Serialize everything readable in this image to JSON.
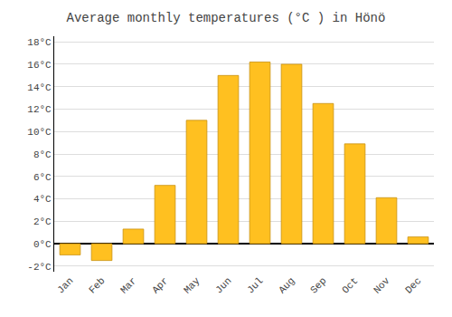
{
  "chart_data": {
    "type": "bar",
    "title": "Average monthly temperatures (°C ) in Hönö",
    "categories": [
      "Jan",
      "Feb",
      "Mar",
      "Apr",
      "May",
      "Jun",
      "Jul",
      "Aug",
      "Sep",
      "Oct",
      "Nov",
      "Dec"
    ],
    "values": [
      -1.0,
      -1.5,
      1.3,
      5.2,
      11.0,
      15.0,
      16.2,
      16.0,
      12.5,
      8.9,
      4.1,
      0.6
    ],
    "color": "#FFC020",
    "ylim": [
      -2.5,
      18.5
    ],
    "yticks": [
      {
        "value": -2,
        "label": "-2°C"
      },
      {
        "value": 0,
        "label": "0°C"
      },
      {
        "value": 2,
        "label": "2°C"
      },
      {
        "value": 4,
        "label": "4°C"
      },
      {
        "value": 6,
        "label": "6°C"
      },
      {
        "value": 8,
        "label": "8°C"
      },
      {
        "value": 10,
        "label": "10°C"
      },
      {
        "value": 12,
        "label": "12°C"
      },
      {
        "value": 14,
        "label": "14°C"
      },
      {
        "value": 16,
        "label": "16°C"
      },
      {
        "value": 18,
        "label": "18°C"
      }
    ],
    "grid": true
  }
}
